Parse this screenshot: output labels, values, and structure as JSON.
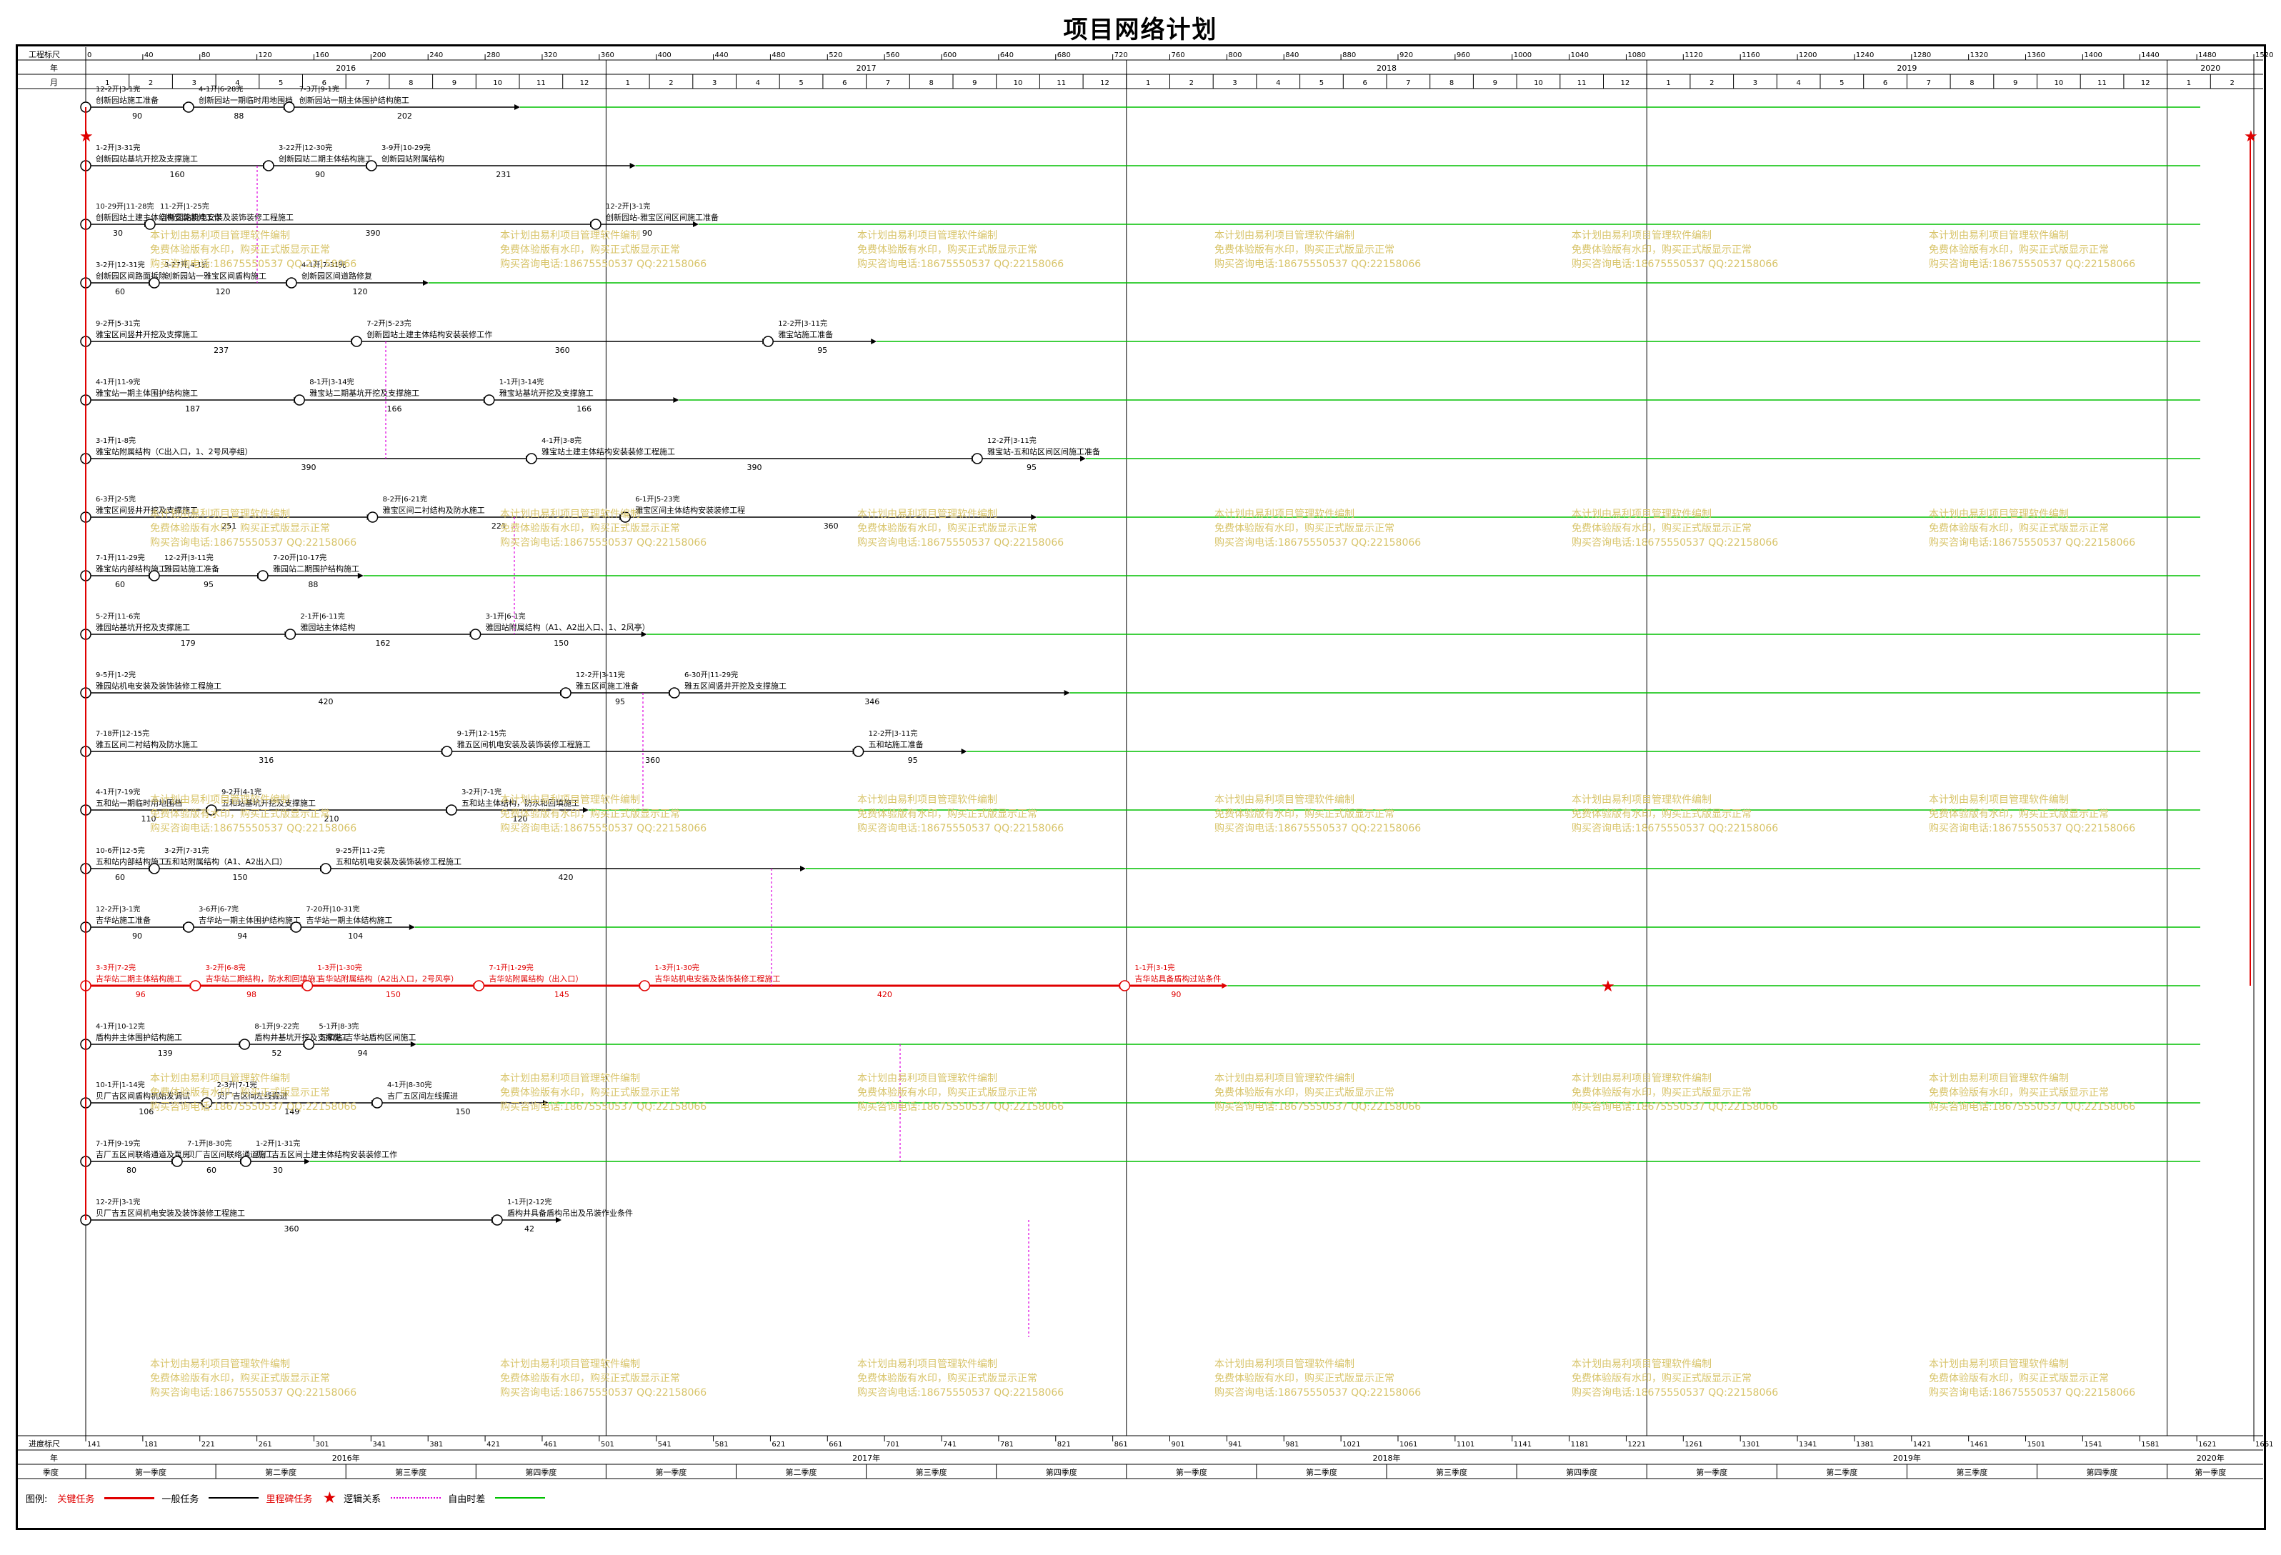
{
  "title": "项目网络计划",
  "scale": {
    "top_label": "工程标尺",
    "year_label": "年",
    "month_label": "月",
    "bottom_label": "进度标尺",
    "bottom_year_label": "年",
    "quarter_label": "季度",
    "ticks": [
      "0",
      "40",
      "80",
      "120",
      "160",
      "200",
      "240",
      "280",
      "320",
      "360",
      "400",
      "440",
      "480",
      "520",
      "560",
      "600",
      "640",
      "680",
      "720",
      "760",
      "800",
      "840",
      "880",
      "920",
      "960",
      "1000",
      "1040",
      "1080",
      "1120",
      "1160",
      "1200",
      "1240",
      "1280",
      "1320",
      "1360",
      "1400",
      "1440",
      "1480",
      "1520"
    ],
    "bottom_ticks": [
      "141",
      "181",
      "221",
      "261",
      "301",
      "341",
      "381",
      "421",
      "461",
      "501",
      "541",
      "581",
      "621",
      "661",
      "701",
      "741",
      "781",
      "821",
      "861",
      "901",
      "941",
      "981",
      "1021",
      "1061",
      "1101",
      "1141",
      "1181",
      "1221",
      "1261",
      "1301",
      "1341",
      "1381",
      "1421",
      "1461",
      "1501",
      "1541",
      "1581",
      "1621",
      "1661"
    ],
    "years": [
      "2016",
      "2017",
      "2018",
      "2019",
      "2020"
    ],
    "months": [
      "1",
      "2",
      "3",
      "4",
      "5",
      "6",
      "7",
      "8",
      "9",
      "10",
      "11",
      "12",
      "1",
      "2",
      "3",
      "4",
      "5",
      "6",
      "7",
      "8",
      "9",
      "10",
      "11",
      "12",
      "1",
      "2",
      "3",
      "4",
      "5",
      "6",
      "7",
      "8",
      "9",
      "10",
      "11",
      "12",
      "1",
      "2",
      "3",
      "4",
      "5",
      "6",
      "7",
      "8",
      "9",
      "10",
      "11",
      "12",
      "1",
      "2"
    ],
    "quarters": [
      "第一季度",
      "第二季度",
      "第三季度",
      "第四季度",
      "第一季度",
      "第二季度",
      "第三季度",
      "第四季度",
      "第一季度",
      "第二季度",
      "第三季度",
      "第四季度",
      "第一季度",
      "第二季度",
      "第三季度",
      "第四季度",
      "第一季度"
    ]
  },
  "legend": {
    "label": "图例:",
    "critical": "关键任务",
    "normal": "一般任务",
    "milestone": "里程碑任务",
    "logic": "逻辑关系",
    "float": "自由时差"
  },
  "watermark": [
    "本计划由易利项目管理软件编制",
    "免费体验版有水印，购买正式版显示正常",
    "购买咨询电话:18675550537 QQ:22158066"
  ],
  "colors": {
    "critical": "#e00000",
    "normal": "#000000",
    "logic": "#e000e0",
    "float": "#00c000",
    "watermark": "#d8c46a"
  },
  "tasks": [
    {
      "label": "创新园站施工准备",
      "dur": "90",
      "dates": "12-2开|3-1完",
      "color": "#000"
    },
    {
      "label": "创新园站一期临时用地围档",
      "dur": "88",
      "dates": "4-1开|6-28完",
      "color": "#000"
    },
    {
      "label": "创新园站一期主体围护结构施工",
      "dur": "202",
      "dates": "7-3开|9-1完",
      "color": "#000"
    },
    {
      "label": "创新园站基坑开挖及支撑施工",
      "dur": "160",
      "dates": "1-2开|3-31完",
      "color": "#000"
    },
    {
      "label": "创新园站二期主体结构施工",
      "dur": "90",
      "dates": "3-22开|12-30完",
      "color": "#000"
    },
    {
      "label": "创新园站附属结构",
      "dur": "231",
      "dates": "3-9开|10-29完",
      "color": "#000"
    },
    {
      "label": "创新园站土建主体结构安装装修工作",
      "dur": "30",
      "dates": "10-29开|11-28完",
      "color": "#000"
    },
    {
      "label": "创新园站机电安装及装饰装修工程施工",
      "dur": "390",
      "dates": "11-2开|1-25完",
      "color": "#000"
    },
    {
      "label": "创新园站-雅宝区间区间施工准备",
      "dur": "90",
      "dates": "12-2开|3-1完",
      "color": "#000"
    },
    {
      "label": "创新园区间路面拆除",
      "dur": "60",
      "dates": "3-2开|12-31完",
      "color": "#000"
    },
    {
      "label": "创新园站一雅宝区间盾构施工",
      "dur": "120",
      "dates": "3-27开|4-1完",
      "color": "#000"
    },
    {
      "label": "创新园区间道路修复",
      "dur": "120",
      "dates": "4-1开|7-31完",
      "color": "#000"
    },
    {
      "label": "雅宝区间竖井开挖及支撑施工",
      "dur": "237",
      "dates": "9-2开|5-31完",
      "color": "#000"
    },
    {
      "label": "创新园站土建主体结构安装装修工作",
      "dur": "360",
      "dates": "7-2开|5-23完",
      "color": "#000"
    },
    {
      "label": "雅宝站施工准备",
      "dur": "95",
      "dates": "12-2开|3-11完",
      "color": "#000"
    },
    {
      "label": "雅宝站一期主体围护结构施工",
      "dur": "187",
      "dates": "4-1开|11-9完",
      "color": "#000"
    },
    {
      "label": "雅宝站二期基坑开挖及支撑施工",
      "dur": "166",
      "dates": "8-1开|3-14完",
      "color": "#000"
    },
    {
      "label": "雅宝站基坑开挖及支撑施工",
      "dur": "166",
      "dates": "1-1开|3-14完",
      "color": "#000"
    },
    {
      "label": "雅宝站附属结构（C出入口，1、2号风亭组）",
      "dur": "390",
      "dates": "3-1开|1-8完",
      "color": "#000"
    },
    {
      "label": "雅宝站土建主体结构安装装修工程施工",
      "dur": "390",
      "dates": "4-1开|3-8完",
      "color": "#000"
    },
    {
      "label": "雅宝站-五和站区间区间施工准备",
      "dur": "95",
      "dates": "12-2开|3-11完",
      "color": "#000"
    },
    {
      "label": "雅宝区间竖井开挖及支撑施工",
      "dur": "251",
      "dates": "6-3开|2-5完",
      "color": "#000"
    },
    {
      "label": "雅宝区间二衬结构及防水施工",
      "dur": "221",
      "dates": "8-2开|6-21完",
      "color": "#000"
    },
    {
      "label": "雅宝区间主体结构安装装修工程",
      "dur": "360",
      "dates": "6-1开|5-23完",
      "color": "#000"
    },
    {
      "label": "雅宝站内部结构施工",
      "dur": "60",
      "dates": "7-1开|11-29完",
      "color": "#000"
    },
    {
      "label": "雅园站施工准备",
      "dur": "95",
      "dates": "12-2开|3-11完",
      "color": "#000"
    },
    {
      "label": "雅园站二期围护结构施工",
      "dur": "88",
      "dates": "7-20开|10-17完",
      "color": "#000"
    },
    {
      "label": "雅园站基坑开挖及支撑施工",
      "dur": "179",
      "dates": "5-2开|11-6完",
      "color": "#000"
    },
    {
      "label": "雅园站主体结构",
      "dur": "162",
      "dates": "2-1开|6-11完",
      "color": "#000"
    },
    {
      "label": "雅园站附属结构（A1、A2出入口、1、2风亭）",
      "dur": "150",
      "dates": "3-1开|6-1完",
      "color": "#000"
    },
    {
      "label": "雅园站机电安装及装饰装修工程施工",
      "dur": "420",
      "dates": "9-5开|1-2完",
      "color": "#000"
    },
    {
      "label": "雅五区间施工准备",
      "dur": "95",
      "dates": "12-2开|3-11完",
      "color": "#000"
    },
    {
      "label": "雅五区间竖井开挖及支撑施工",
      "dur": "346",
      "dates": "6-30开|11-29完",
      "color": "#000"
    },
    {
      "label": "雅五区间二衬结构及防水施工",
      "dur": "316",
      "dates": "7-18开|12-15完",
      "color": "#000"
    },
    {
      "label": "雅五区间机电安装及装饰装修工程施工",
      "dur": "360",
      "dates": "9-1开|12-15完",
      "color": "#000"
    },
    {
      "label": "五和站施工准备",
      "dur": "95",
      "dates": "12-2开|3-11完",
      "color": "#000"
    },
    {
      "label": "五和站一期临时用地围档",
      "dur": "110",
      "dates": "4-1开|7-19完",
      "color": "#000"
    },
    {
      "label": "五和站基坑开挖及支撑施工",
      "dur": "210",
      "dates": "9-2开|4-1完",
      "color": "#000"
    },
    {
      "label": "五和站主体结构，防水和回填施工",
      "dur": "120",
      "dates": "3-2开|7-1完",
      "color": "#000"
    },
    {
      "label": "五和站内部结构施工",
      "dur": "60",
      "dates": "10-6开|12-5完",
      "color": "#000"
    },
    {
      "label": "五和站附属结构（A1、A2出入口）",
      "dur": "150",
      "dates": "3-2开|7-31完",
      "color": "#000"
    },
    {
      "label": "五和站机电安装及装饰装修工程施工",
      "dur": "420",
      "dates": "9-25开|11-2完",
      "color": "#000"
    },
    {
      "label": "吉华站施工准备",
      "dur": "90",
      "dates": "12-2开|3-1完",
      "color": "#000"
    },
    {
      "label": "吉华站一期主体围护结构施工",
      "dur": "94",
      "dates": "3-6开|6-7完",
      "color": "#000"
    },
    {
      "label": "吉华站一期主体结构施工",
      "dur": "104",
      "dates": "7-20开|10-31完",
      "color": "#000"
    },
    {
      "label": "吉华站二期主体结构施工",
      "dur": "96",
      "dates": "3-3开|7-2完",
      "color": "#000"
    },
    {
      "label": "吉华站二期结构，防水和回填施工",
      "dur": "98",
      "dates": "3-2开|6-8完",
      "color": "#000"
    },
    {
      "label": "吉华站附属结构（A2出入口，2号风亭）",
      "dur": "150",
      "dates": "1-3开|1-30完",
      "color": "#000"
    },
    {
      "label": "吉华站附属结构（出入口）",
      "dur": "145",
      "dates": "7-1开|1-29完",
      "color": "#000"
    },
    {
      "label": "吉华站机电安装及装饰装修工程施工",
      "dur": "420",
      "dates": "1-3开|1-30完",
      "color": "#000"
    },
    {
      "label": "吉华站具备盾构过站条件",
      "dur": "90",
      "dates": "1-1开|3-1完",
      "color": "#000"
    },
    {
      "label": "盾构井主体围护结构施工",
      "dur": "139",
      "dates": "4-1开|10-12完",
      "color": "#000"
    },
    {
      "label": "盾构井基坑开挖及支撑施工",
      "dur": "52",
      "dates": "8-1开|9-22完",
      "color": "#000"
    },
    {
      "label": "五和站-吉华站盾构区间施工",
      "dur": "94",
      "dates": "5-1开|8-3完",
      "color": "#000"
    },
    {
      "label": "贝厂吉区间盾构机始发调试",
      "dur": "106",
      "dates": "10-1开|1-14完",
      "color": "#000"
    },
    {
      "label": "贝厂吉区间左线掘进",
      "dur": "149",
      "dates": "2-3开|7-1完",
      "color": "#000"
    },
    {
      "label": "吉厂五区间左线掘进",
      "dur": "150",
      "dates": "4-1开|8-30完",
      "color": "#000"
    },
    {
      "label": "吉厂五区间联络通道及泵房",
      "dur": "80",
      "dates": "7-1开|9-19完",
      "color": "#000"
    },
    {
      "label": "贝厂吉区间联络通道施工",
      "dur": "60",
      "dates": "7-1开|8-30完",
      "color": "#000"
    },
    {
      "label": "贝厂吉五区间土建主体结构安装装修工作",
      "dur": "30",
      "dates": "1-2开|1-31完",
      "color": "#000"
    },
    {
      "label": "贝厂吉五区间机电安装及装饰装修工程施工",
      "dur": "360",
      "dates": "12-2开|3-1完",
      "color": "#000"
    },
    {
      "label": "盾构井具备盾构吊出及吊装作业条件",
      "dur": "42",
      "dates": "1-1开|2-12完",
      "color": "#000"
    }
  ]
}
